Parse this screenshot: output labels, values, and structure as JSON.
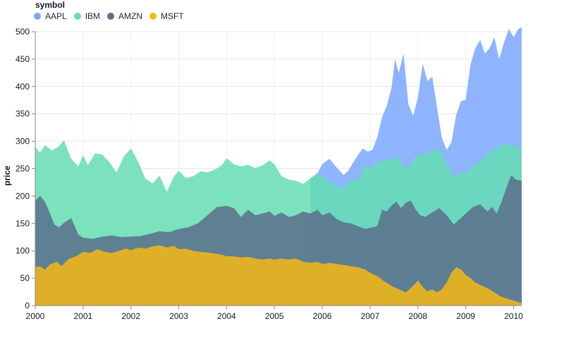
{
  "chart_data": {
    "type": "area",
    "title": "",
    "xlabel": "",
    "ylabel": "price",
    "xlim": [
      2000,
      2010.17
    ],
    "ylim": [
      0,
      500
    ],
    "yticks": [
      0,
      50,
      100,
      150,
      200,
      250,
      300,
      350,
      400,
      450,
      500
    ],
    "xticks": [
      2000,
      2001,
      2002,
      2003,
      2004,
      2005,
      2006,
      2007,
      2008,
      2009,
      2010
    ],
    "grid": true,
    "legend_placement": "top-left",
    "legend_title": "symbol",
    "series": [
      {
        "name": "AAPL",
        "color": "#7aa7ff",
        "points": [
          [
            2005.75,
            232
          ],
          [
            2005.9,
            242
          ],
          [
            2006.0,
            258
          ],
          [
            2006.15,
            268
          ],
          [
            2006.3,
            252
          ],
          [
            2006.45,
            238
          ],
          [
            2006.55,
            247
          ],
          [
            2006.65,
            262
          ],
          [
            2006.75,
            275
          ],
          [
            2006.85,
            287
          ],
          [
            2006.95,
            281
          ],
          [
            2007.05,
            284
          ],
          [
            2007.15,
            307
          ],
          [
            2007.25,
            344
          ],
          [
            2007.35,
            365
          ],
          [
            2007.45,
            398
          ],
          [
            2007.52,
            450
          ],
          [
            2007.6,
            425
          ],
          [
            2007.7,
            460
          ],
          [
            2007.8,
            368
          ],
          [
            2007.9,
            346
          ],
          [
            2008.0,
            380
          ],
          [
            2008.1,
            442
          ],
          [
            2008.2,
            410
          ],
          [
            2008.3,
            418
          ],
          [
            2008.4,
            362
          ],
          [
            2008.5,
            307
          ],
          [
            2008.6,
            284
          ],
          [
            2008.7,
            298
          ],
          [
            2008.8,
            348
          ],
          [
            2008.9,
            373
          ],
          [
            2009.0,
            376
          ],
          [
            2009.1,
            440
          ],
          [
            2009.2,
            470
          ],
          [
            2009.3,
            485
          ],
          [
            2009.4,
            460
          ],
          [
            2009.5,
            470
          ],
          [
            2009.6,
            490
          ],
          [
            2009.7,
            450
          ],
          [
            2009.8,
            480
          ],
          [
            2009.9,
            505
          ],
          [
            2010.0,
            490
          ],
          [
            2010.1,
            505
          ],
          [
            2010.17,
            508
          ]
        ]
      },
      {
        "name": "IBM",
        "color": "#65ddb3",
        "points": [
          [
            2000.0,
            290
          ],
          [
            2000.1,
            279
          ],
          [
            2000.2,
            293
          ],
          [
            2000.35,
            283
          ],
          [
            2000.5,
            291
          ],
          [
            2000.6,
            302
          ],
          [
            2000.75,
            268
          ],
          [
            2000.9,
            254
          ],
          [
            2001.0,
            275
          ],
          [
            2001.1,
            256
          ],
          [
            2001.25,
            278
          ],
          [
            2001.4,
            276
          ],
          [
            2001.55,
            262
          ],
          [
            2001.7,
            243
          ],
          [
            2001.85,
            272
          ],
          [
            2002.0,
            287
          ],
          [
            2002.15,
            263
          ],
          [
            2002.3,
            232
          ],
          [
            2002.45,
            223
          ],
          [
            2002.6,
            237
          ],
          [
            2002.75,
            208
          ],
          [
            2002.9,
            236
          ],
          [
            2003.0,
            246
          ],
          [
            2003.15,
            233
          ],
          [
            2003.3,
            236
          ],
          [
            2003.45,
            245
          ],
          [
            2003.6,
            243
          ],
          [
            2003.75,
            248
          ],
          [
            2003.9,
            256
          ],
          [
            2004.0,
            269
          ],
          [
            2004.15,
            258
          ],
          [
            2004.3,
            254
          ],
          [
            2004.45,
            257
          ],
          [
            2004.6,
            251
          ],
          [
            2004.75,
            256
          ],
          [
            2004.9,
            265
          ],
          [
            2005.0,
            258
          ],
          [
            2005.15,
            236
          ],
          [
            2005.3,
            230
          ],
          [
            2005.45,
            228
          ],
          [
            2005.6,
            222
          ],
          [
            2005.75,
            232
          ],
          [
            2005.9,
            240
          ],
          [
            2006.0,
            236
          ],
          [
            2006.15,
            224
          ],
          [
            2006.3,
            219
          ],
          [
            2006.45,
            215
          ],
          [
            2006.6,
            230
          ],
          [
            2006.75,
            228
          ],
          [
            2006.9,
            257
          ],
          [
            2007.0,
            251
          ],
          [
            2007.15,
            262
          ],
          [
            2007.3,
            265
          ],
          [
            2007.45,
            268
          ],
          [
            2007.6,
            270
          ],
          [
            2007.75,
            248
          ],
          [
            2007.9,
            265
          ],
          [
            2008.0,
            276
          ],
          [
            2008.15,
            275
          ],
          [
            2008.3,
            282
          ],
          [
            2008.45,
            285
          ],
          [
            2008.6,
            260
          ],
          [
            2008.75,
            236
          ],
          [
            2008.9,
            245
          ],
          [
            2009.0,
            240
          ],
          [
            2009.15,
            257
          ],
          [
            2009.3,
            262
          ],
          [
            2009.45,
            278
          ],
          [
            2009.6,
            283
          ],
          [
            2009.75,
            295
          ],
          [
            2009.9,
            294
          ],
          [
            2010.0,
            292
          ],
          [
            2010.17,
            288
          ]
        ]
      },
      {
        "name": "AMZN",
        "color": "#5b6f8c",
        "points": [
          [
            2000.0,
            192
          ],
          [
            2000.1,
            200
          ],
          [
            2000.2,
            190
          ],
          [
            2000.3,
            170
          ],
          [
            2000.4,
            148
          ],
          [
            2000.5,
            143
          ],
          [
            2000.6,
            151
          ],
          [
            2000.75,
            160
          ],
          [
            2000.9,
            130
          ],
          [
            2001.0,
            124
          ],
          [
            2001.2,
            122
          ],
          [
            2001.4,
            126
          ],
          [
            2001.6,
            128
          ],
          [
            2001.8,
            125
          ],
          [
            2002.0,
            126
          ],
          [
            2002.2,
            127
          ],
          [
            2002.4,
            131
          ],
          [
            2002.6,
            136
          ],
          [
            2002.8,
            134
          ],
          [
            2003.0,
            140
          ],
          [
            2003.2,
            143
          ],
          [
            2003.4,
            150
          ],
          [
            2003.6,
            165
          ],
          [
            2003.8,
            180
          ],
          [
            2004.0,
            182
          ],
          [
            2004.15,
            178
          ],
          [
            2004.3,
            162
          ],
          [
            2004.45,
            175
          ],
          [
            2004.6,
            165
          ],
          [
            2004.75,
            168
          ],
          [
            2004.9,
            172
          ],
          [
            2005.0,
            164
          ],
          [
            2005.15,
            170
          ],
          [
            2005.3,
            162
          ],
          [
            2005.45,
            165
          ],
          [
            2005.6,
            172
          ],
          [
            2005.75,
            168
          ],
          [
            2005.9,
            175
          ],
          [
            2006.0,
            165
          ],
          [
            2006.15,
            170
          ],
          [
            2006.3,
            158
          ],
          [
            2006.45,
            152
          ],
          [
            2006.6,
            150
          ],
          [
            2006.75,
            145
          ],
          [
            2006.9,
            140
          ],
          [
            2007.0,
            142
          ],
          [
            2007.15,
            145
          ],
          [
            2007.25,
            175
          ],
          [
            2007.35,
            172
          ],
          [
            2007.45,
            183
          ],
          [
            2007.55,
            190
          ],
          [
            2007.65,
            178
          ],
          [
            2007.75,
            188
          ],
          [
            2007.85,
            192
          ],
          [
            2007.95,
            176
          ],
          [
            2008.05,
            165
          ],
          [
            2008.15,
            162
          ],
          [
            2008.3,
            170
          ],
          [
            2008.45,
            178
          ],
          [
            2008.6,
            165
          ],
          [
            2008.75,
            148
          ],
          [
            2008.9,
            160
          ],
          [
            2009.0,
            168
          ],
          [
            2009.15,
            180
          ],
          [
            2009.3,
            185
          ],
          [
            2009.45,
            172
          ],
          [
            2009.55,
            180
          ],
          [
            2009.65,
            168
          ],
          [
            2009.75,
            190
          ],
          [
            2009.85,
            215
          ],
          [
            2009.95,
            238
          ],
          [
            2010.05,
            230
          ],
          [
            2010.17,
            228
          ]
        ]
      },
      {
        "name": "MSFT",
        "color": "#f5b915",
        "points": [
          [
            2000.0,
            70
          ],
          [
            2000.1,
            72
          ],
          [
            2000.2,
            65
          ],
          [
            2000.3,
            75
          ],
          [
            2000.45,
            80
          ],
          [
            2000.55,
            72
          ],
          [
            2000.7,
            85
          ],
          [
            2000.85,
            90
          ],
          [
            2001.0,
            98
          ],
          [
            2001.15,
            96
          ],
          [
            2001.3,
            103
          ],
          [
            2001.45,
            98
          ],
          [
            2001.6,
            96
          ],
          [
            2001.75,
            100
          ],
          [
            2001.9,
            104
          ],
          [
            2002.0,
            101
          ],
          [
            2002.15,
            106
          ],
          [
            2002.3,
            104
          ],
          [
            2002.45,
            108
          ],
          [
            2002.6,
            110
          ],
          [
            2002.75,
            106
          ],
          [
            2002.9,
            109
          ],
          [
            2003.0,
            103
          ],
          [
            2003.15,
            104
          ],
          [
            2003.3,
            100
          ],
          [
            2003.45,
            98
          ],
          [
            2003.6,
            97
          ],
          [
            2003.75,
            95
          ],
          [
            2003.9,
            93
          ],
          [
            2004.0,
            90
          ],
          [
            2004.15,
            90
          ],
          [
            2004.3,
            88
          ],
          [
            2004.45,
            89
          ],
          [
            2004.6,
            86
          ],
          [
            2004.75,
            84
          ],
          [
            2004.9,
            86
          ],
          [
            2005.0,
            84
          ],
          [
            2005.15,
            86
          ],
          [
            2005.3,
            84
          ],
          [
            2005.45,
            86
          ],
          [
            2005.6,
            80
          ],
          [
            2005.75,
            78
          ],
          [
            2005.9,
            80
          ],
          [
            2006.0,
            76
          ],
          [
            2006.15,
            78
          ],
          [
            2006.3,
            76
          ],
          [
            2006.45,
            74
          ],
          [
            2006.6,
            72
          ],
          [
            2006.75,
            70
          ],
          [
            2006.9,
            66
          ],
          [
            2007.0,
            60
          ],
          [
            2007.15,
            54
          ],
          [
            2007.3,
            44
          ],
          [
            2007.45,
            36
          ],
          [
            2007.6,
            30
          ],
          [
            2007.75,
            24
          ],
          [
            2007.9,
            36
          ],
          [
            2008.0,
            46
          ],
          [
            2008.1,
            34
          ],
          [
            2008.2,
            26
          ],
          [
            2008.3,
            30
          ],
          [
            2008.4,
            24
          ],
          [
            2008.5,
            30
          ],
          [
            2008.6,
            42
          ],
          [
            2008.7,
            60
          ],
          [
            2008.8,
            70
          ],
          [
            2008.9,
            66
          ],
          [
            2009.0,
            56
          ],
          [
            2009.1,
            50
          ],
          [
            2009.2,
            42
          ],
          [
            2009.3,
            38
          ],
          [
            2009.45,
            32
          ],
          [
            2009.6,
            24
          ],
          [
            2009.75,
            16
          ],
          [
            2009.9,
            12
          ],
          [
            2010.05,
            8
          ],
          [
            2010.17,
            4
          ]
        ]
      }
    ]
  },
  "legend": {
    "title": "symbol",
    "items": [
      "AAPL",
      "IBM",
      "AMZN",
      "MSFT"
    ]
  }
}
